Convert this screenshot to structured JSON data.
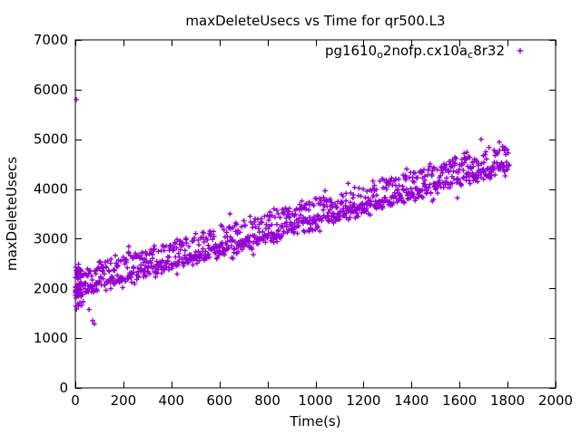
{
  "window": {
    "background": "#ffffff"
  },
  "chart_data": {
    "type": "scatter",
    "title": "maxDeleteUsecs vs Time for qr500.L3",
    "xlabel": "Time(s)",
    "ylabel": "maxDeleteUsecs",
    "xlim": [
      0,
      2000
    ],
    "ylim": [
      0,
      7000
    ],
    "x_ticks": [
      0,
      200,
      400,
      600,
      800,
      1000,
      1200,
      1400,
      1600,
      1800,
      2000
    ],
    "y_ticks": [
      0,
      1000,
      2000,
      3000,
      4000,
      5000,
      6000,
      7000
    ],
    "grid": false,
    "frame_color": "#000000",
    "text_color": "#000000",
    "legend": {
      "position": "inside-top-right",
      "entries": [
        {
          "label": "pg1610_o2nofp.cx10a_c8r32",
          "marker": "plus",
          "color": "#9400D3"
        }
      ]
    },
    "series": [
      {
        "name": "pg1610_o2nofp.cx10a_c8r32",
        "label_segments": [
          {
            "text": "pg1610",
            "sub": false
          },
          {
            "text": "o",
            "sub": true
          },
          {
            "text": "2nofp.cx10a",
            "sub": false
          },
          {
            "text": "c",
            "sub": true
          },
          {
            "text": "8r32",
            "sub": false
          }
        ],
        "color": "#9400D3",
        "marker": "plus",
        "trend_summary": {
          "t_range_s": [
            0,
            1810
          ],
          "value_at_t0": 2025,
          "value_at_t1800": 4555,
          "slope_usecs_per_s": 1.405,
          "band_halfwidth_usecs": 350
        },
        "generator": {
          "seed": 7,
          "count": 1155,
          "startup_extra": 40,
          "startup_span_s": 25,
          "t_min": 0,
          "t_max": 1805,
          "t_jitter": 2.5,
          "intercept": 2025,
          "slope": 1.405,
          "components": [
            {
              "weight": 0.62,
              "offset": -80,
              "sigma": 85
            },
            {
              "weight": 0.3,
              "offset": 260,
              "sigma": 75
            },
            {
              "weight": 0.08,
              "offset": 80,
              "sigma": 230,
              "clamp_dev": 520
            }
          ]
        },
        "outliers": [
          [
            4,
            5800
          ],
          [
            72,
            1350
          ],
          [
            79,
            1285
          ],
          [
            2,
            1640
          ],
          [
            5,
            1585
          ],
          [
            9,
            1690
          ],
          [
            13,
            1645
          ],
          [
            19,
            1715
          ],
          [
            26,
            1660
          ],
          [
            57,
            1575
          ],
          [
            33,
            1735
          ]
        ]
      }
    ]
  }
}
